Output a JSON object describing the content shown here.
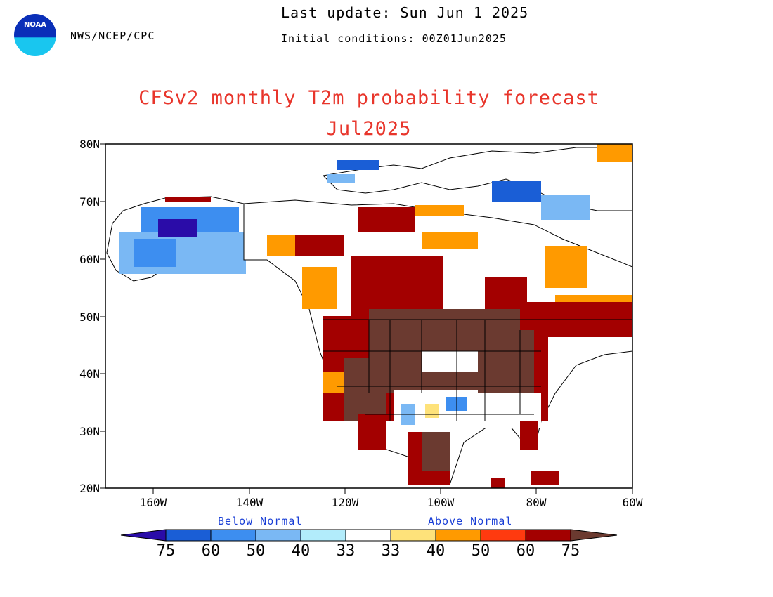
{
  "header": {
    "agency": "NWS/NCEP/CPC",
    "last_update": "Last update: Sun Jun 1 2025",
    "initial_conditions": "Initial conditions: 00Z01Jun2025",
    "logo_text": "NOAA"
  },
  "title": {
    "line1": "CFSv2 monthly T2m probability forecast",
    "line2": "Jul2025"
  },
  "map": {
    "lat_labels": [
      "80N",
      "70N",
      "60N",
      "50N",
      "40N",
      "30N",
      "20N"
    ],
    "lon_labels": [
      "160W",
      "140W",
      "120W",
      "100W",
      "80W",
      "60W"
    ],
    "lat_range": [
      20,
      80
    ],
    "lon_range": [
      -170,
      -60
    ],
    "frame_color": "#000000"
  },
  "legend": {
    "below_label": "Below Normal",
    "above_label": "Above Normal",
    "numbers": [
      "75",
      "60",
      "50",
      "40",
      "33",
      "33",
      "40",
      "50",
      "60",
      "75"
    ],
    "colors": {
      "below_75": "#2a0ca8",
      "below_60": "#1a5ed6",
      "below_50": "#3d8ef0",
      "below_40": "#7ab8f4",
      "below_33": "#b2ecfb",
      "normal": "#ffffff",
      "above_33": "#fee27a",
      "above_40": "#ff9a00",
      "above_50": "#ff3a0f",
      "above_60": "#a30000",
      "above_75": "#6b3a30"
    }
  }
}
